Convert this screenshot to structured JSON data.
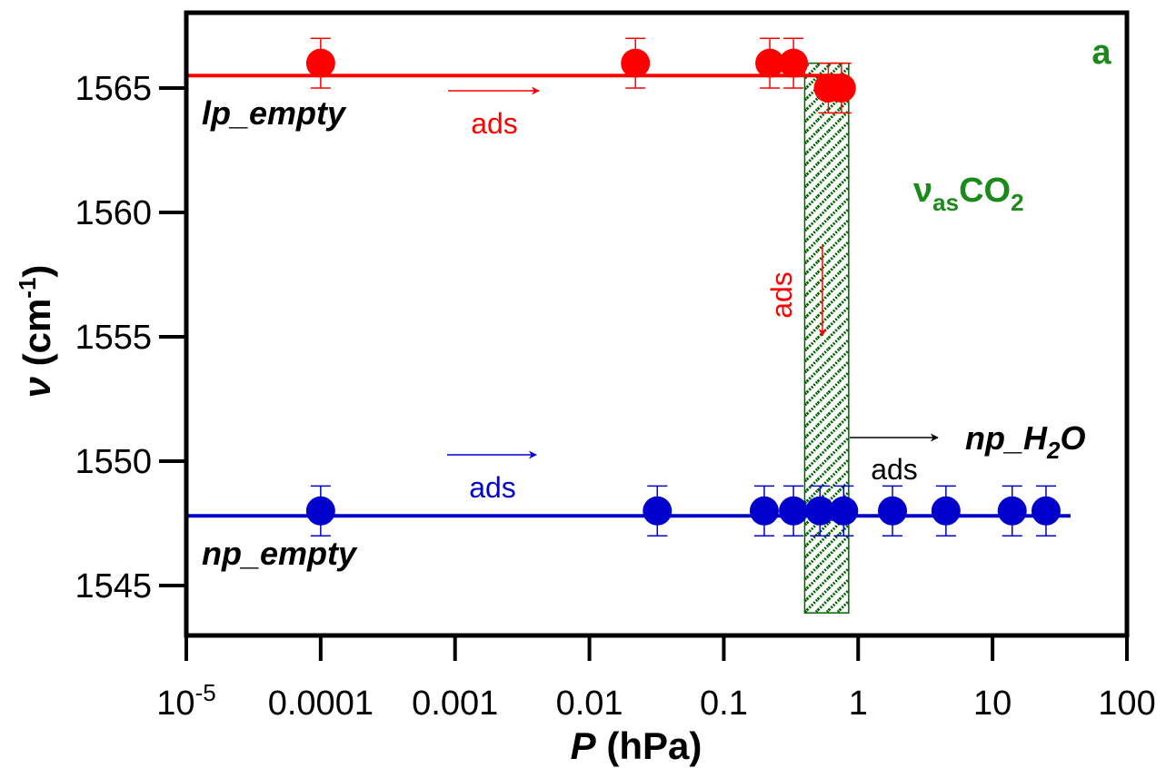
{
  "chart_data": {
    "type": "scatter",
    "panel_letter": "a",
    "band_label_main": "ν",
    "band_label_sub": "as",
    "band_label_tail": "CO",
    "band_label_tail_sub": "2",
    "xlabel_var": "P",
    "xlabel_unit": " (hPa)",
    "ylabel_var": "ν",
    "ylabel_unit_pre": " (cm",
    "ylabel_unit_sup": "-1",
    "ylabel_unit_post": ")",
    "xscale": "log",
    "xlim": [
      1e-05,
      100
    ],
    "ylim": [
      1543,
      1568
    ],
    "x_ticks": [
      {
        "value": 1e-05,
        "base": "10",
        "exp": "-5"
      },
      {
        "value": 0.0001,
        "label": "0.0001"
      },
      {
        "value": 0.001,
        "label": "0.001"
      },
      {
        "value": 0.01,
        "label": "0.01"
      },
      {
        "value": 0.1,
        "label": "0.1"
      },
      {
        "value": 1,
        "label": "1"
      },
      {
        "value": 10,
        "label": "10"
      },
      {
        "value": 100,
        "label": "100"
      }
    ],
    "y_ticks": [
      {
        "value": 1545,
        "label": "1545"
      },
      {
        "value": 1550,
        "label": "1550"
      },
      {
        "value": 1555,
        "label": "1555"
      },
      {
        "value": 1560,
        "label": "1560"
      },
      {
        "value": 1565,
        "label": "1565"
      }
    ],
    "series": [
      {
        "name": "lp_empty",
        "color": "#ff0000",
        "fit_line": {
          "x": [
            1e-05,
            0.8
          ],
          "y": 1565.5
        },
        "points": [
          {
            "x": 0.0001,
            "y": 1566,
            "err": 1
          },
          {
            "x": 0.022,
            "y": 1566,
            "err": 1
          },
          {
            "x": 0.22,
            "y": 1566,
            "err": 1
          },
          {
            "x": 0.33,
            "y": 1566,
            "err": 1
          },
          {
            "x": 0.6,
            "y": 1565,
            "err": 1
          },
          {
            "x": 0.75,
            "y": 1565,
            "err": 1
          }
        ]
      },
      {
        "name": "np_empty",
        "color": "#0000cc",
        "fit_line": {
          "x": [
            1e-05,
            38
          ],
          "y": 1547.8
        },
        "points": [
          {
            "x": 0.0001,
            "y": 1548,
            "err": 1
          },
          {
            "x": 0.032,
            "y": 1548,
            "err": 1
          },
          {
            "x": 0.2,
            "y": 1548,
            "err": 1
          },
          {
            "x": 0.33,
            "y": 1548,
            "err": 1
          },
          {
            "x": 0.52,
            "y": 1548,
            "err": 1
          },
          {
            "x": 0.78,
            "y": 1548,
            "err": 1
          },
          {
            "x": 1.8,
            "y": 1548,
            "err": 1
          },
          {
            "x": 4.5,
            "y": 1548,
            "err": 1
          },
          {
            "x": 14,
            "y": 1548,
            "err": 1
          },
          {
            "x": 25,
            "y": 1548,
            "err": 1
          }
        ]
      }
    ],
    "transition_band": {
      "x": [
        0.4,
        0.85
      ],
      "y": [
        1543.9,
        1566
      ],
      "color": "#006400"
    },
    "annotations": [
      {
        "id": "lp",
        "text": "lp_empty"
      },
      {
        "id": "np",
        "text": "np_empty"
      },
      {
        "id": "nph2o",
        "main": "np_H",
        "sub": "2",
        "tail": "O"
      },
      {
        "id": "ads_red_h",
        "text": "ads",
        "color": "#ff0000"
      },
      {
        "id": "ads_red_v",
        "text": "ads",
        "color": "#ff0000"
      },
      {
        "id": "ads_blue",
        "text": "ads",
        "color": "#0000cc"
      },
      {
        "id": "ads_black",
        "text": "ads",
        "color": "#000000"
      }
    ],
    "grid": false,
    "legend": "none"
  }
}
